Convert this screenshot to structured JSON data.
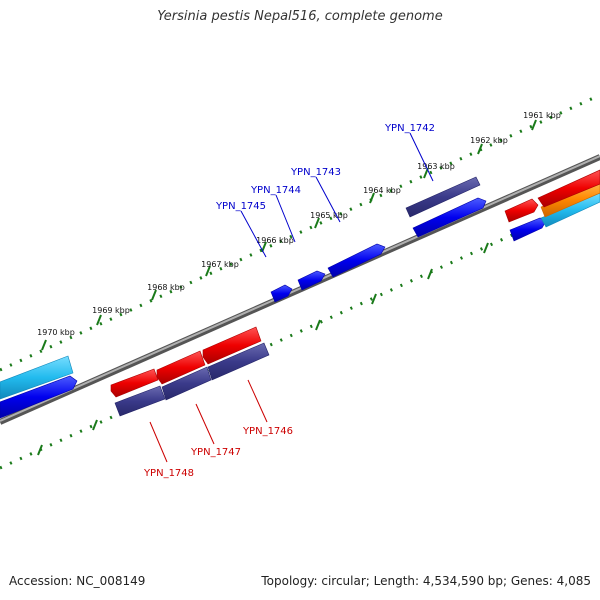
{
  "title": "Yersinia pestis Nepal516, complete genome",
  "footer": {
    "accession": "Accession: NC_008149",
    "summary": "Topology: circular; Length: 4,534,590 bp; Genes: 4,085"
  },
  "ruler_labels": [
    "1961 kbp",
    "1962 kbp",
    "1963 kbp",
    "1964 kbp",
    "1965 kbp",
    "1966 kbp",
    "1967 kbp",
    "1968 kbp",
    "1969 kbp",
    "1970 kbp"
  ],
  "gene_labels": {
    "top": [
      "YPN_1742",
      "YPN_1743",
      "YPN_1744",
      "YPN_1745"
    ],
    "bottom": [
      "YPN_1746",
      "YPN_1747",
      "YPN_1748"
    ]
  },
  "colors": {
    "backbone": "#808080",
    "ruler": "#1a7a1a",
    "forward_gene": "#0000ee",
    "reverse_gene": "#ee0000",
    "cds_dark": "#3a3a8a",
    "cyan": "#22bbee",
    "orange": "#ff8800",
    "label_blue": "#0000cc",
    "label_red": "#cc0000"
  }
}
